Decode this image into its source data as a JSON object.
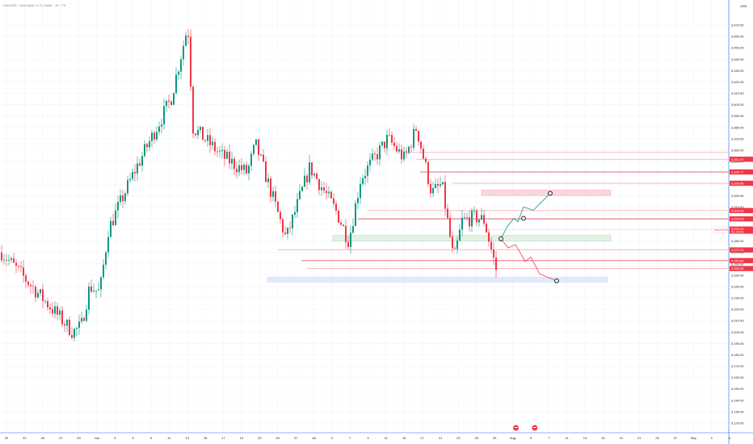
{
  "header": {
    "title": "XAUUSD · Gold Spot / U.S. Dollar · 4h · FX",
    "currency": "USD"
  },
  "price_badges": [
    {
      "label": "3,351.97",
      "value": 3351.97
    },
    {
      "label": "3,340.77",
      "value": 3340.77
    },
    {
      "label": "3,330.86",
      "value": 3330.86
    },
    {
      "label": "3,306.82",
      "value": 3306.82
    },
    {
      "label": "3,299.53",
      "value": 3299.53
    },
    {
      "label": "3,272.20",
      "value": 3272.2
    },
    {
      "label": "3,262.80",
      "value": 3262.8
    },
    {
      "label": "3,255.86",
      "value": 3255.86
    }
  ],
  "last_price": {
    "symbol": "XAUUSD",
    "value": 3290.0,
    "label": "3,290.00",
    "countdown": "01:15:53"
  },
  "colors": {
    "up": "#089981",
    "down": "#f23645",
    "grid": "#f0f3fa",
    "axis_text": "#131722",
    "resistance_zone": "#f7c6cc",
    "support_zone": "#d5ecd6",
    "target_zone": "#d4e2f8",
    "bull_path": "#089981",
    "bear_path": "#f23645",
    "event_icon": "#f23645"
  },
  "chart_data": {
    "type": "candlestick",
    "title": "XAUUSD · Gold Spot / U.S. Dollar · 4h · FX",
    "ylim": [
      3105,
      3480
    ],
    "y_ticks": [
      3470,
      3460,
      3450,
      3440,
      3430,
      3420,
      3410,
      3400,
      3390,
      3380,
      3370,
      3360,
      3350,
      3340,
      3330,
      3320,
      3310,
      3300,
      3290,
      3280,
      3270,
      3260,
      3250,
      3240,
      3230,
      3220,
      3210,
      3200,
      3190,
      3180,
      3170,
      3160,
      3150,
      3140,
      3130,
      3120
    ],
    "y_tick_labels": [
      "3,470.00",
      "3,460.00",
      "3,450.00",
      "3,440.00",
      "3,430.00",
      "3,420.00",
      "3,410.00",
      "3,400.00",
      "3,390.00",
      "3,380.00",
      "3,370.00",
      "3,360.00",
      "3,350.00",
      "3,340.00",
      "3,330.00",
      "3,320.00",
      "3,310.00",
      "3,300.00",
      "3,290.00",
      "3,280.00",
      "3,270.00",
      "3,260.00",
      "3,250.00",
      "3,240.00",
      "3,230.00",
      "3,220.00",
      "3,210.00",
      "3,200.00",
      "3,190.00",
      "3,180.00",
      "3,170.00",
      "3,160.00",
      "3,150.00",
      "3,140.00",
      "3,130.00",
      "3,120.00"
    ],
    "x_tick_labels": [
      "20",
      "22",
      "26",
      "27",
      "29",
      "Jun",
      "3",
      "5",
      "9",
      "11",
      "13",
      "15",
      "17",
      "19",
      "23",
      "25",
      "27",
      "Jul",
      "3",
      "7",
      "9",
      "11",
      "15",
      "17",
      "21",
      "23",
      "25",
      "29",
      "Aug",
      "5",
      "7",
      "11",
      "13",
      "15",
      "19",
      "21",
      "25",
      "27",
      "Sep",
      "3",
      "5"
    ],
    "path_points": [
      {
        "t": 0.0,
        "v": 3270
      },
      {
        "t": 0.42,
        "v": 3200
      },
      {
        "t": 0.47,
        "v": 3205
      },
      {
        "t": 0.52,
        "v": 3240
      },
      {
        "t": 0.58,
        "v": 3235
      },
      {
        "t": 0.63,
        "v": 3290
      },
      {
        "t": 0.78,
        "v": 3340
      },
      {
        "t": 1.0,
        "v": 3405
      },
      {
        "t": 1.1,
        "v": 3470
      },
      {
        "t": 1.13,
        "v": 3380
      },
      {
        "t": 1.3,
        "v": 3355
      },
      {
        "t": 1.45,
        "v": 3340
      },
      {
        "t": 1.5,
        "v": 3365
      },
      {
        "t": 1.68,
        "v": 3282
      },
      {
        "t": 1.72,
        "v": 3300
      },
      {
        "t": 1.82,
        "v": 3345
      },
      {
        "t": 1.98,
        "v": 3305
      },
      {
        "t": 2.05,
        "v": 3280
      },
      {
        "t": 2.12,
        "v": 3335
      },
      {
        "t": 2.28,
        "v": 3370
      },
      {
        "t": 2.38,
        "v": 3352
      },
      {
        "t": 2.45,
        "v": 3380
      },
      {
        "t": 2.54,
        "v": 3322
      },
      {
        "t": 2.6,
        "v": 3330
      },
      {
        "t": 2.67,
        "v": 3262
      },
      {
        "t": 2.72,
        "v": 3298
      },
      {
        "t": 2.8,
        "v": 3301
      },
      {
        "t": 2.85,
        "v": 3298
      },
      {
        "t": 2.92,
        "v": 3255
      }
    ],
    "annotations": {
      "h_lines": [
        {
          "value": 3358.0,
          "color": "#f7a8b0",
          "style": "solid"
        },
        {
          "value": 3351.97,
          "color": "#f5a3ab",
          "style": "solid"
        },
        {
          "value": 3340.77,
          "color": "#f23645",
          "style": "solid"
        },
        {
          "value": 3330.86,
          "color": "#f5a3ab",
          "style": "solid"
        },
        {
          "value": 3306.82,
          "color": "#f5a3ab",
          "style": "solid"
        },
        {
          "value": 3299.53,
          "color": "#f23645",
          "style": "solid"
        },
        {
          "value": 3290.0,
          "color": "#f5a3ab",
          "style": "dotted"
        },
        {
          "value": 3272.2,
          "color": "#f5a3ab",
          "style": "solid"
        },
        {
          "value": 3262.8,
          "color": "#f23645",
          "style": "solid"
        },
        {
          "value": 3255.86,
          "color": "#f5a3ab",
          "style": "solid"
        }
      ],
      "zones": [
        {
          "kind": "resistance",
          "from": 3320,
          "to": 3325
        },
        {
          "kind": "support",
          "from": 3280,
          "to": 3285
        },
        {
          "kind": "target",
          "from": 3244,
          "to": 3248
        }
      ],
      "bull_path": [
        3282,
        3293,
        3300,
        3297,
        3310,
        3307,
        3322
      ],
      "bear_path": [
        3282,
        3274,
        3277,
        3262,
        3266,
        3251,
        3245
      ],
      "event_dates": [
        "Aug",
        "5"
      ]
    }
  }
}
